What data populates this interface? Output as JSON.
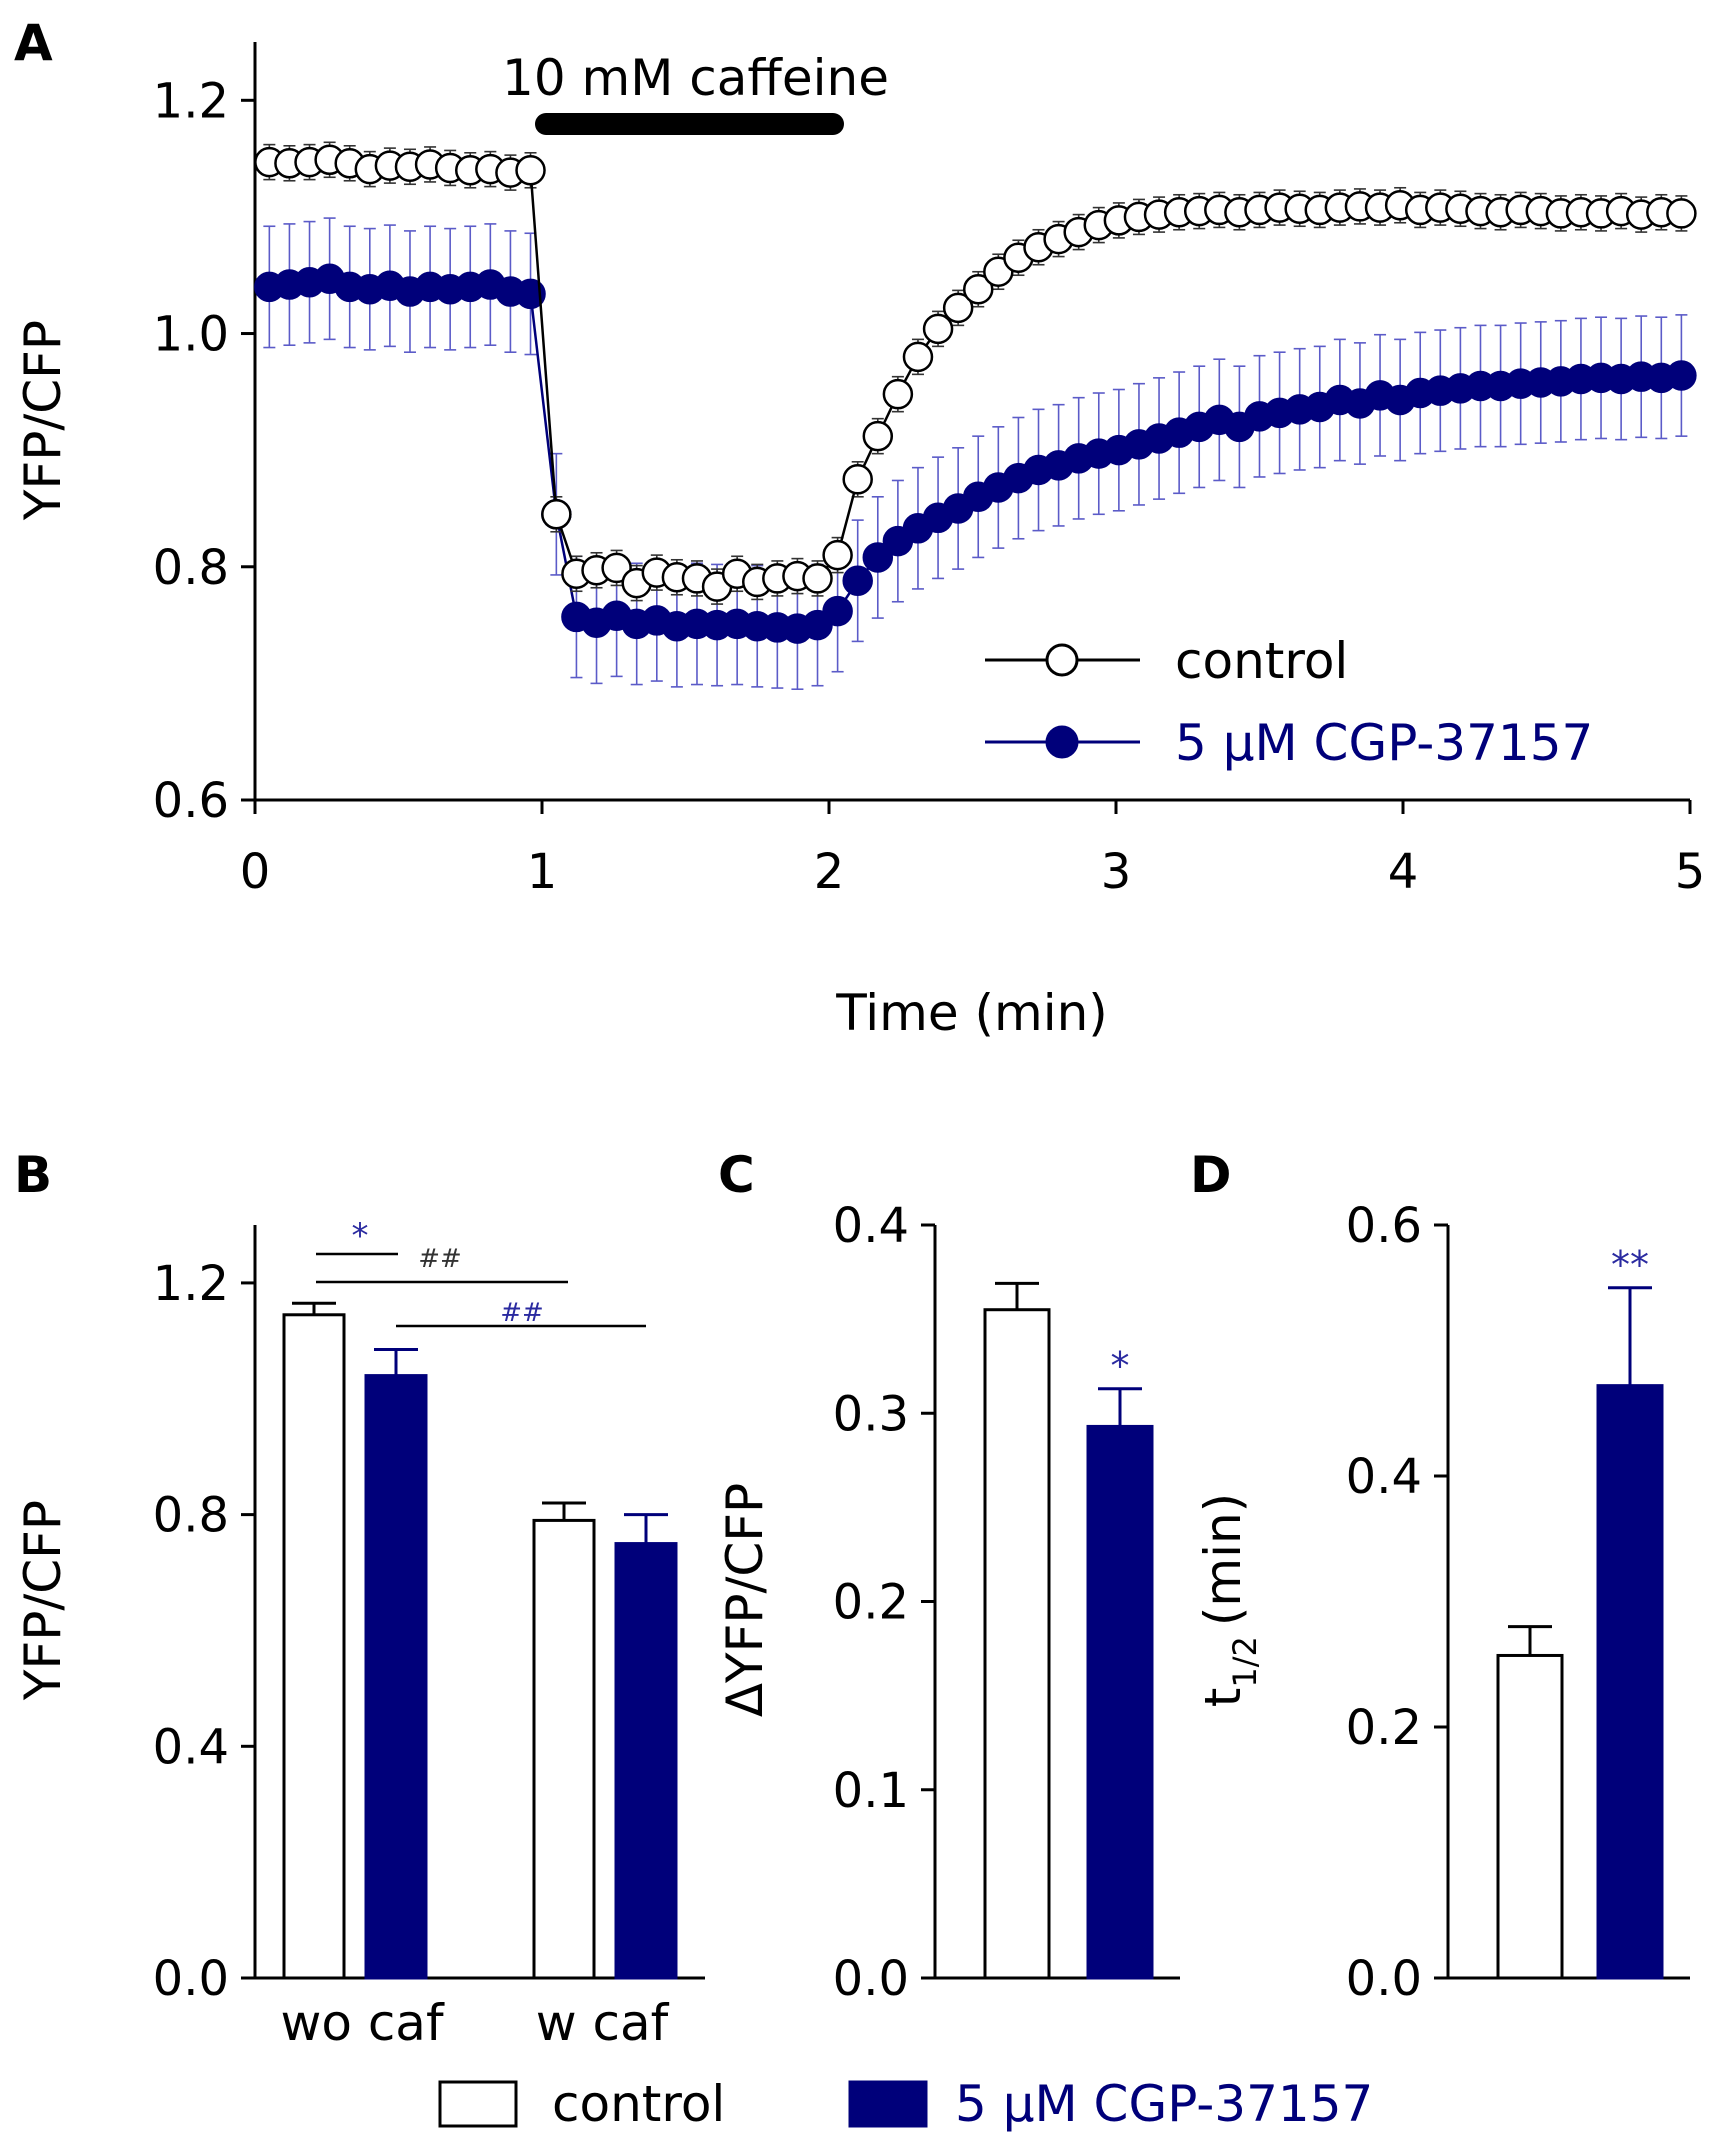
{
  "colors": {
    "control": "#000000",
    "cgp": "#00007a",
    "star": "#2a2aa0",
    "bg": "#ffffff"
  },
  "legend_bottom": {
    "control": "control",
    "cgp": "5 µM CGP-37157"
  },
  "chart_data": [
    {
      "panel": "A",
      "type": "line",
      "title": "",
      "xlabel": "Time (min)",
      "ylabel": "YFP/CFP",
      "xlim": [
        0,
        5
      ],
      "ylim": [
        0.6,
        1.25
      ],
      "xticks": [
        "0",
        "1",
        "2",
        "3",
        "4",
        "5"
      ],
      "yticks": [
        "0.6",
        "0.8",
        "1.0",
        "1.2"
      ],
      "annotation": "10 mM caffeine",
      "annotation_range": [
        1,
        2
      ],
      "legend": [
        "control",
        "5 µM CGP-37157"
      ],
      "legend_position": "lower-right",
      "series": [
        {
          "name": "control",
          "x": [
            0.05,
            0.12,
            0.19,
            0.26,
            0.33,
            0.4,
            0.47,
            0.54,
            0.61,
            0.68,
            0.75,
            0.82,
            0.89,
            0.96,
            1.05,
            1.12,
            1.19,
            1.26,
            1.33,
            1.4,
            1.47,
            1.54,
            1.61,
            1.68,
            1.75,
            1.82,
            1.89,
            1.96,
            2.03,
            2.1,
            2.17,
            2.24,
            2.31,
            2.38,
            2.45,
            2.52,
            2.59,
            2.66,
            2.73,
            2.8,
            2.87,
            2.94,
            3.01,
            3.08,
            3.15,
            3.22,
            3.29,
            3.36,
            3.43,
            3.5,
            3.57,
            3.64,
            3.71,
            3.78,
            3.85,
            3.92,
            3.99,
            4.06,
            4.13,
            4.2,
            4.27,
            4.34,
            4.41,
            4.48,
            4.55,
            4.62,
            4.69,
            4.76,
            4.83,
            4.9,
            4.97
          ],
          "values": [
            1.147,
            1.146,
            1.147,
            1.149,
            1.146,
            1.141,
            1.144,
            1.143,
            1.145,
            1.142,
            1.14,
            1.141,
            1.138,
            1.14,
            0.845,
            0.794,
            0.797,
            0.799,
            0.786,
            0.795,
            0.791,
            0.79,
            0.783,
            0.794,
            0.787,
            0.79,
            0.792,
            0.79,
            0.81,
            0.875,
            0.912,
            0.948,
            0.98,
            1.004,
            1.022,
            1.038,
            1.053,
            1.065,
            1.074,
            1.081,
            1.087,
            1.093,
            1.097,
            1.1,
            1.102,
            1.104,
            1.105,
            1.106,
            1.104,
            1.106,
            1.108,
            1.107,
            1.106,
            1.108,
            1.109,
            1.108,
            1.11,
            1.106,
            1.108,
            1.107,
            1.105,
            1.104,
            1.106,
            1.105,
            1.103,
            1.104,
            1.103,
            1.105,
            1.102,
            1.104,
            1.103
          ],
          "error": 0.015
        },
        {
          "name": "5 µM CGP-37157",
          "x": [
            0.05,
            0.12,
            0.19,
            0.26,
            0.33,
            0.4,
            0.47,
            0.54,
            0.61,
            0.68,
            0.75,
            0.82,
            0.89,
            0.96,
            1.05,
            1.12,
            1.19,
            1.26,
            1.33,
            1.4,
            1.47,
            1.54,
            1.61,
            1.68,
            1.75,
            1.82,
            1.89,
            1.96,
            2.03,
            2.1,
            2.17,
            2.24,
            2.31,
            2.38,
            2.45,
            2.52,
            2.59,
            2.66,
            2.73,
            2.8,
            2.87,
            2.94,
            3.01,
            3.08,
            3.15,
            3.22,
            3.29,
            3.36,
            3.43,
            3.5,
            3.57,
            3.64,
            3.71,
            3.78,
            3.85,
            3.92,
            3.99,
            4.06,
            4.13,
            4.2,
            4.27,
            4.34,
            4.41,
            4.48,
            4.55,
            4.62,
            4.69,
            4.76,
            4.83,
            4.9,
            4.97
          ],
          "values": [
            1.04,
            1.042,
            1.044,
            1.047,
            1.04,
            1.038,
            1.041,
            1.036,
            1.04,
            1.038,
            1.04,
            1.042,
            1.036,
            1.034,
            0.845,
            0.757,
            0.752,
            0.758,
            0.751,
            0.754,
            0.749,
            0.751,
            0.75,
            0.751,
            0.749,
            0.748,
            0.747,
            0.75,
            0.762,
            0.788,
            0.808,
            0.822,
            0.833,
            0.842,
            0.85,
            0.86,
            0.868,
            0.876,
            0.883,
            0.887,
            0.893,
            0.897,
            0.9,
            0.905,
            0.91,
            0.915,
            0.92,
            0.926,
            0.92,
            0.929,
            0.932,
            0.935,
            0.937,
            0.943,
            0.94,
            0.947,
            0.943,
            0.949,
            0.951,
            0.953,
            0.955,
            0.955,
            0.957,
            0.958,
            0.959,
            0.961,
            0.962,
            0.961,
            0.963,
            0.962,
            0.964
          ],
          "error": 0.052
        }
      ]
    },
    {
      "panel": "B",
      "type": "bar",
      "ylabel": "YFP/CFP",
      "ylim": [
        0,
        1.3
      ],
      "yticks": [
        "0.0",
        "0.4",
        "0.8",
        "1.2"
      ],
      "categories": [
        "wo caf",
        "w caf"
      ],
      "series": [
        {
          "name": "control",
          "values": [
            1.145,
            0.79
          ],
          "errors": [
            0.02,
            0.03
          ]
        },
        {
          "name": "5 µM CGP-37157",
          "values": [
            1.04,
            0.75
          ],
          "errors": [
            0.045,
            0.05
          ]
        }
      ],
      "annotations": [
        "*",
        "##",
        "##"
      ]
    },
    {
      "panel": "C",
      "type": "bar",
      "ylabel": "ΔYFP/CFP",
      "ylim": [
        0,
        0.4
      ],
      "yticks": [
        "0.0",
        "0.1",
        "0.2",
        "0.3",
        "0.4"
      ],
      "series": [
        {
          "name": "control",
          "value": 0.355,
          "error": 0.014
        },
        {
          "name": "5 µM CGP-37157",
          "value": 0.293,
          "error": 0.02
        }
      ],
      "significance": "*"
    },
    {
      "panel": "D",
      "type": "bar",
      "ylabel": "t",
      "ylabel_sub": "1/2",
      "ylabel_suffix": "(min)",
      "ylim": [
        0,
        0.6
      ],
      "yticks": [
        "0.0",
        "0.2",
        "0.4",
        "0.6"
      ],
      "series": [
        {
          "name": "control",
          "value": 0.257,
          "error": 0.023
        },
        {
          "name": "5 µM CGP-37157",
          "value": 0.472,
          "error": 0.078
        }
      ],
      "significance": "**"
    }
  ]
}
